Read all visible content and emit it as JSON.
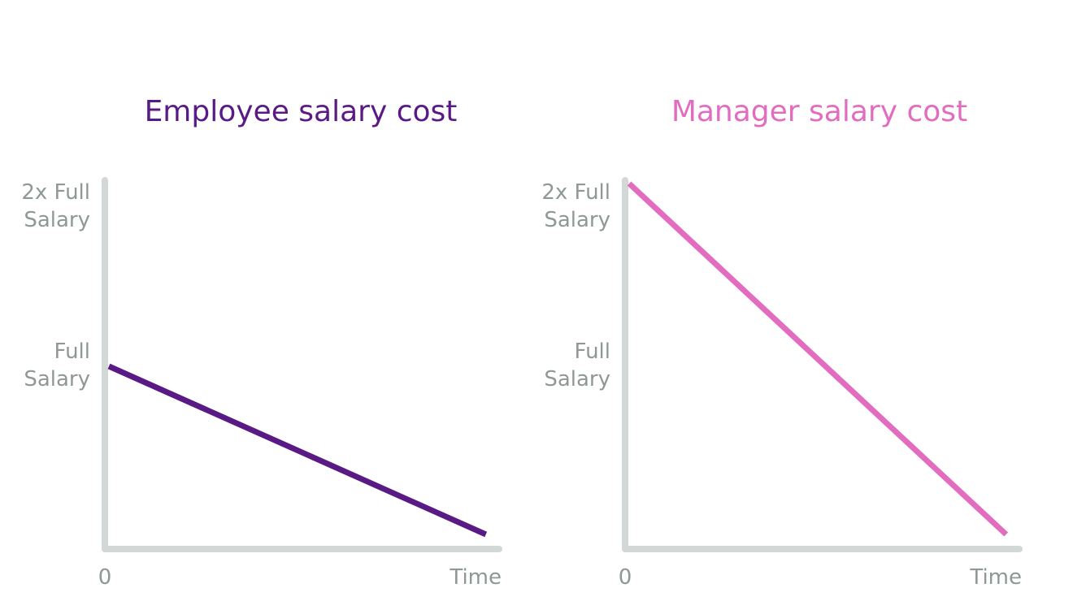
{
  "chart_data": [
    {
      "type": "line",
      "title": "Employee salary cost",
      "xlabel": "",
      "ylabel": "",
      "x_tick_labels": [
        "0",
        "Time"
      ],
      "y_tick_labels": [
        {
          "value": 2,
          "lines": [
            "2x Full",
            "Salary"
          ]
        },
        {
          "value": 1,
          "lines": [
            "Full",
            "Salary"
          ]
        }
      ],
      "xlim": [
        0,
        1
      ],
      "ylim": [
        0,
        2
      ],
      "series": [
        {
          "color": "#5a1a86",
          "points": [
            [
              0,
              1.0
            ],
            [
              0.97,
              0.08
            ]
          ]
        }
      ],
      "grid": false
    },
    {
      "type": "line",
      "title": "Manager salary cost",
      "xlabel": "",
      "ylabel": "",
      "x_tick_labels": [
        "0",
        "Time"
      ],
      "y_tick_labels": [
        {
          "value": 2,
          "lines": [
            "2x Full",
            "Salary"
          ]
        },
        {
          "value": 1,
          "lines": [
            "Full",
            "Salary"
          ]
        }
      ],
      "xlim": [
        0,
        1
      ],
      "ylim": [
        0,
        2
      ],
      "series": [
        {
          "color": "#e26cbf",
          "points": [
            [
              0,
              2.0
            ],
            [
              0.97,
              0.08
            ]
          ]
        }
      ],
      "grid": false
    }
  ],
  "colors": {
    "axis": "#d2d8d5",
    "tick_text": "#8f9894",
    "employee": "#5a1a86",
    "manager": "#e26cbf"
  }
}
